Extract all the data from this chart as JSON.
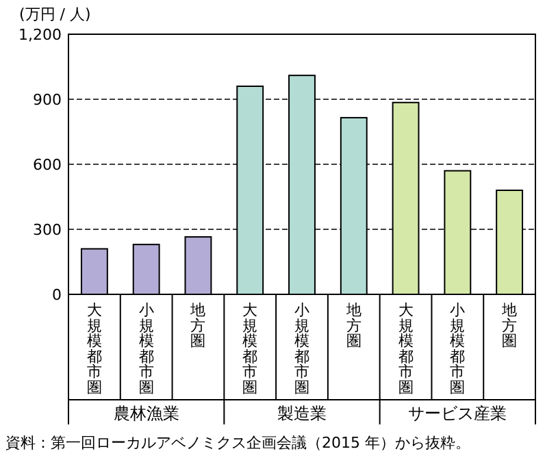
{
  "chart_data": {
    "type": "bar",
    "ylabel": "(万円 / 人)",
    "categories": [
      "大規模都市圏",
      "小規模都市圏",
      "地方圏",
      "大規模都市圏",
      "小規模都市圏",
      "地方圏",
      "大規模都市圏",
      "小規模都市圏",
      "地方圏"
    ],
    "values": [
      210,
      230,
      265,
      960,
      1010,
      815,
      885,
      570,
      480
    ],
    "colors": [
      "#b3acd6",
      "#b3acd6",
      "#b3acd6",
      "#b3ddd4",
      "#b3ddd4",
      "#b3ddd4",
      "#d5e8a8",
      "#d5e8a8",
      "#d5e8a8"
    ],
    "ylim": [
      0,
      1200
    ],
    "yticks": [
      0,
      300,
      600,
      900,
      {
        "value": 1200,
        "label": "1,200"
      }
    ],
    "grid": "y",
    "annotations": [
      "農林漁業",
      "製造業",
      "サービス産業",
      "資料：第一回ローカルアベノミクス企画会議（2015 年）から抜粋。"
    ]
  }
}
